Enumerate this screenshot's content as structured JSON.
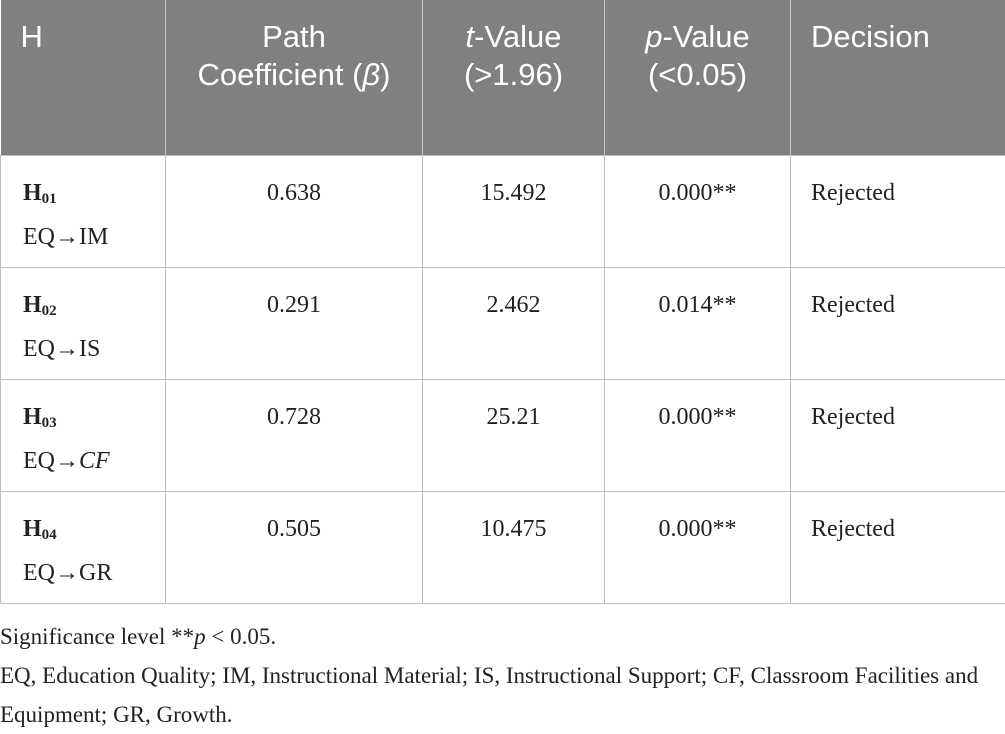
{
  "table": {
    "header": [
      [
        "H"
      ],
      [
        "Path Coefficient (",
        "β",
        ")"
      ],
      [
        "t",
        "-Value (>1.96)"
      ],
      [
        "p",
        "-Value (<0.05)"
      ],
      [
        "Decision"
      ]
    ],
    "header_italic_parts": [
      [],
      [
        1
      ],
      [
        0
      ],
      [
        0
      ],
      []
    ],
    "rows": [
      {
        "id": "H",
        "id_sub": "01",
        "from": "EQ",
        "arrow": "→",
        "to": "IM",
        "to_italic": false,
        "beta": "0.638",
        "t": "15.492",
        "p": "0.000**",
        "decision": "Rejected"
      },
      {
        "id": "H",
        "id_sub": "02",
        "from": "EQ",
        "arrow": "→",
        "to": "IS",
        "to_italic": false,
        "beta": "0.291",
        "t": "2.462",
        "p": "0.014**",
        "decision": "Rejected"
      },
      {
        "id": "H",
        "id_sub": "03",
        "from": "EQ",
        "arrow": "→",
        "to": "CF",
        "to_italic": true,
        "beta": "0.728",
        "t": "25.21",
        "p": "0.000**",
        "decision": "Rejected"
      },
      {
        "id": "H",
        "id_sub": "04",
        "from": "EQ",
        "arrow": "→",
        "to": "GR",
        "to_italic": false,
        "beta": "0.505",
        "t": "10.475",
        "p": "0.000**",
        "decision": "Rejected"
      }
    ]
  },
  "notes": {
    "significance": [
      "Significance level **",
      "p",
      " < 0.05."
    ],
    "abbreviations": "EQ, Education Quality; IM, Instructional Material; IS, Instructional Support; CF, Classroom Facilities and Equipment; GR, Growth."
  }
}
